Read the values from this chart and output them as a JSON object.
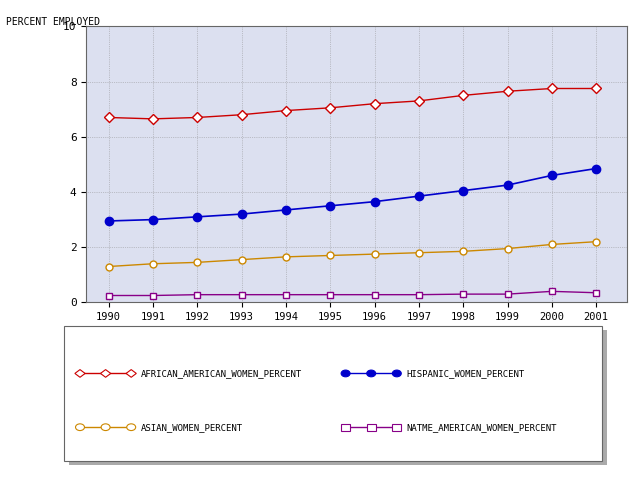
{
  "years": [
    1990,
    1991,
    1992,
    1993,
    1994,
    1995,
    1996,
    1997,
    1998,
    1999,
    2000,
    2001
  ],
  "african_american": [
    6.7,
    6.65,
    6.7,
    6.8,
    6.95,
    7.05,
    7.2,
    7.3,
    7.5,
    7.65,
    7.75,
    7.75
  ],
  "hispanic": [
    2.95,
    3.0,
    3.1,
    3.2,
    3.35,
    3.5,
    3.65,
    3.85,
    4.05,
    4.25,
    4.6,
    4.85
  ],
  "asian": [
    1.3,
    1.4,
    1.45,
    1.55,
    1.65,
    1.7,
    1.75,
    1.8,
    1.85,
    1.95,
    2.1,
    2.2
  ],
  "native_american": [
    0.25,
    0.25,
    0.28,
    0.28,
    0.28,
    0.28,
    0.28,
    0.28,
    0.3,
    0.3,
    0.4,
    0.35
  ],
  "african_american_color": "#cc0000",
  "hispanic_color": "#0000cc",
  "asian_color": "#cc8800",
  "native_american_color": "#880088",
  "plot_bg_color": "#dce0f0",
  "grid_color": "#888888",
  "ylabel": "PERCENT EMPLOYED",
  "ylim": [
    0,
    10
  ],
  "yticks": [
    0,
    2,
    4,
    6,
    8,
    10
  ],
  "legend_labels_left": [
    "AFRICAN_AMERICAN_WOMEN_PERCENT",
    "ASIAN_WOMEN_PERCENT"
  ],
  "legend_labels_right": [
    "HISPANIC_WOMEN_PERCENT",
    "NATME_AMERICAN_WOMEN_PERCENT"
  ]
}
